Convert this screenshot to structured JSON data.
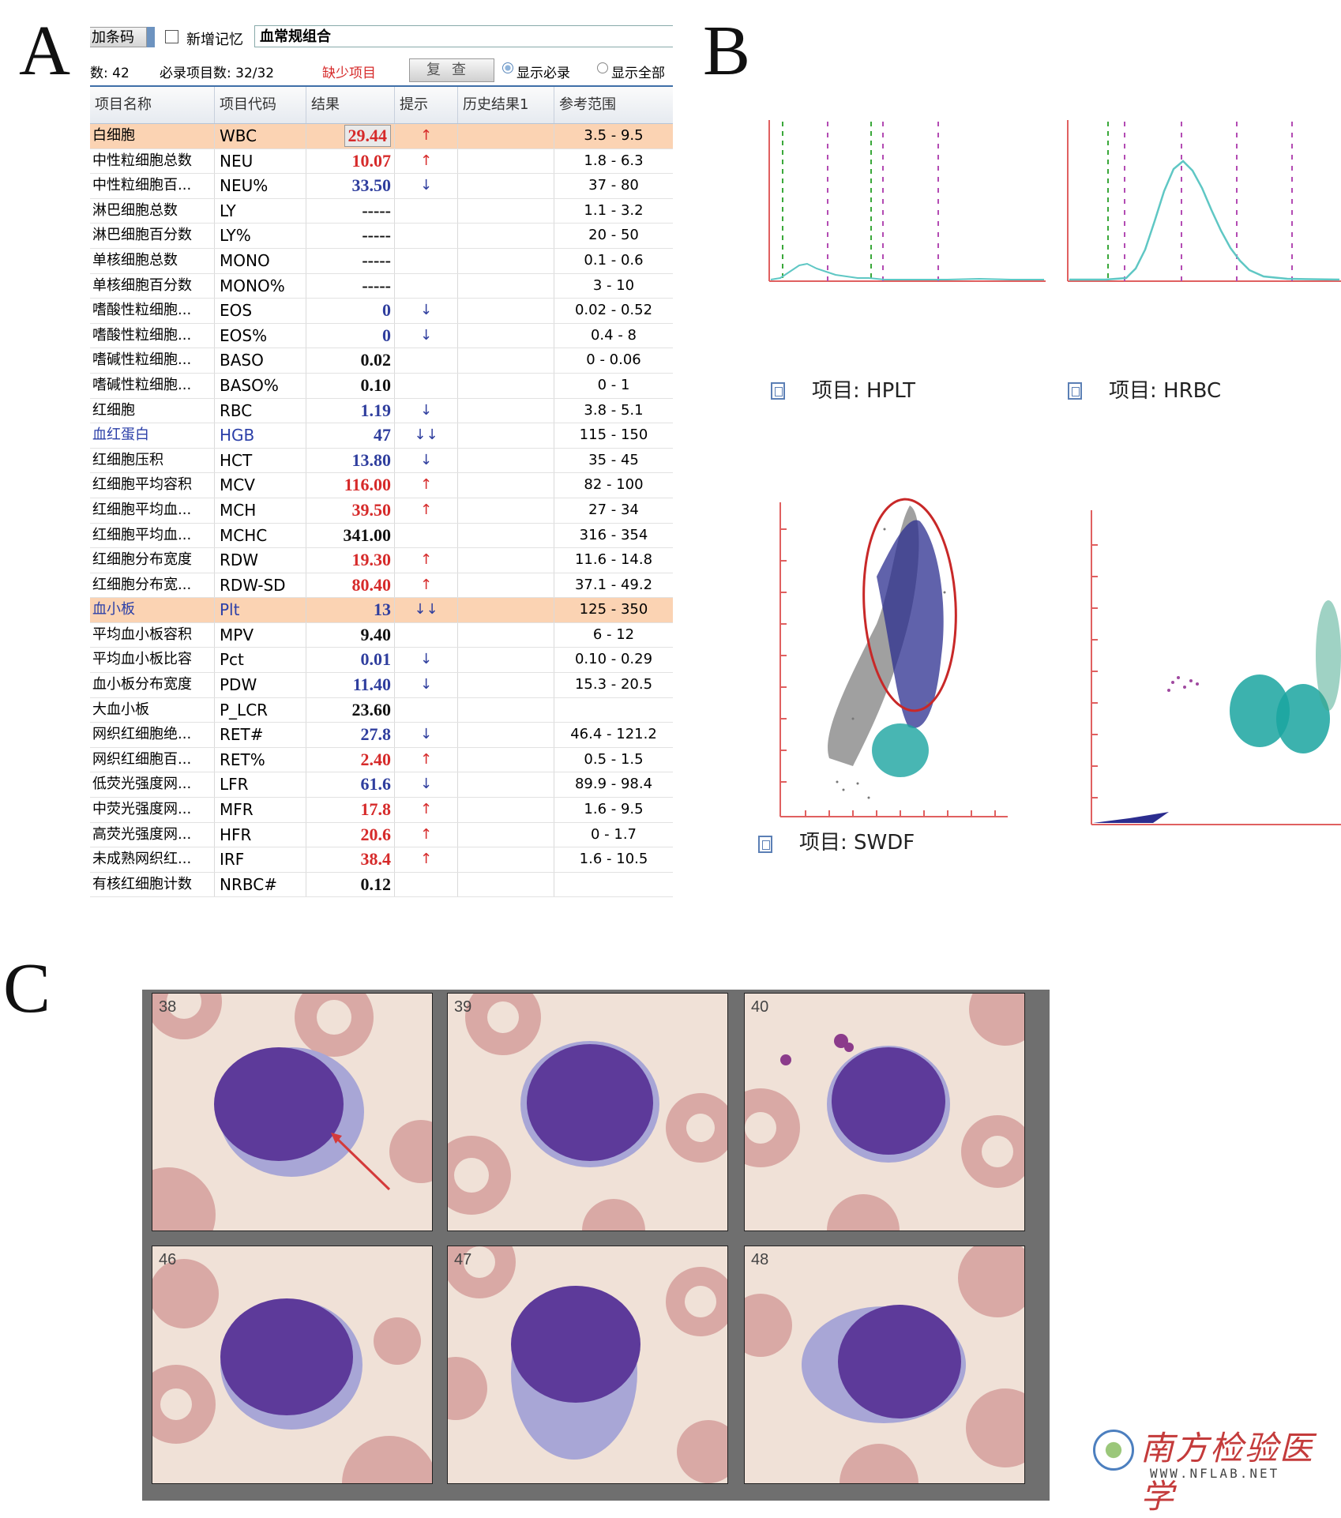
{
  "panels": {
    "a": "A",
    "b": "B",
    "c": "C"
  },
  "toolbar": {
    "barcode_btn": "加条码",
    "new_memory_label": "新增记忆",
    "combo_value": "血常规组合",
    "count_text": "数: 42",
    "required_text": "必录项目数: 32/32",
    "missing_text": "缺少项目",
    "review_btn": "复查",
    "radio_required": "显示必录",
    "radio_all": "显示全部"
  },
  "table": {
    "headers": [
      "项目名称",
      "项目代码",
      "结果",
      "提示",
      "历史结果1",
      "参考范围"
    ],
    "rows": [
      {
        "name": "白细胞",
        "code": "WBC",
        "result": "29.44",
        "flag": "↑",
        "ref": "3.5 - 9.5",
        "color": "#d62a2a",
        "hl": true,
        "boxed": true
      },
      {
        "name": "中性粒细胞总数",
        "code": "NEU",
        "result": "10.07",
        "flag": "↑",
        "ref": "1.8 - 6.3",
        "color": "#d62a2a"
      },
      {
        "name": "中性粒细胞百...",
        "code": "NEU%",
        "result": "33.50",
        "flag": "↓",
        "ref": "37 - 80",
        "color": "#2f3e9e"
      },
      {
        "name": "淋巴细胞总数",
        "code": "LY",
        "result": "-----",
        "flag": "",
        "ref": "1.1 - 3.2",
        "color": "#111111"
      },
      {
        "name": "淋巴细胞百分数",
        "code": "LY%",
        "result": "-----",
        "flag": "",
        "ref": "20 - 50",
        "color": "#111111"
      },
      {
        "name": "单核细胞总数",
        "code": "MONO",
        "result": "-----",
        "flag": "",
        "ref": "0.1 - 0.6",
        "color": "#111111"
      },
      {
        "name": "单核细胞百分数",
        "code": "MONO%",
        "result": "-----",
        "flag": "",
        "ref": "3 - 10",
        "color": "#111111"
      },
      {
        "name": "嗜酸性粒细胞...",
        "code": "EOS",
        "result": "0",
        "flag": "↓",
        "ref": "0.02 - 0.52",
        "color": "#2f3e9e"
      },
      {
        "name": "嗜酸性粒细胞...",
        "code": "EOS%",
        "result": "0",
        "flag": "↓",
        "ref": "0.4 - 8",
        "color": "#2f3e9e"
      },
      {
        "name": "嗜碱性粒细胞...",
        "code": "BASO",
        "result": "0.02",
        "flag": "",
        "ref": "0 - 0.06",
        "color": "#111111"
      },
      {
        "name": "嗜碱性粒细胞...",
        "code": "BASO%",
        "result": "0.10",
        "flag": "",
        "ref": "0 - 1",
        "color": "#111111"
      },
      {
        "name": "红细胞",
        "code": "RBC",
        "result": "1.19",
        "flag": "↓",
        "ref": "3.8 - 5.1",
        "color": "#2f3e9e"
      },
      {
        "name": "血红蛋白",
        "code": "HGB",
        "result": "47",
        "flag": "↓↓",
        "ref": "115 - 150",
        "color": "#2f3e9e",
        "namecolor": "#2b3fa8"
      },
      {
        "name": "红细胞压积",
        "code": "HCT",
        "result": "13.80",
        "flag": "↓",
        "ref": "35 - 45",
        "color": "#2f3e9e"
      },
      {
        "name": "红细胞平均容积",
        "code": "MCV",
        "result": "116.00",
        "flag": "↑",
        "ref": "82 - 100",
        "color": "#d62a2a"
      },
      {
        "name": "红细胞平均血...",
        "code": "MCH",
        "result": "39.50",
        "flag": "↑",
        "ref": "27 - 34",
        "color": "#d62a2a"
      },
      {
        "name": "红细胞平均血...",
        "code": "MCHC",
        "result": "341.00",
        "flag": "",
        "ref": "316 - 354",
        "color": "#111111"
      },
      {
        "name": "红细胞分布宽度",
        "code": "RDW",
        "result": "19.30",
        "flag": "↑",
        "ref": "11.6 - 14.8",
        "color": "#d62a2a"
      },
      {
        "name": "红细胞分布宽...",
        "code": "RDW-SD",
        "result": "80.40",
        "flag": "↑",
        "ref": "37.1 - 49.2",
        "color": "#d62a2a"
      },
      {
        "name": "血小板",
        "code": "Plt",
        "result": "13",
        "flag": "↓↓",
        "ref": "125 - 350",
        "color": "#2f3e9e",
        "hl": true,
        "namecolor": "#2b3fa8"
      },
      {
        "name": "平均血小板容积",
        "code": "MPV",
        "result": "9.40",
        "flag": "",
        "ref": "6 - 12",
        "color": "#111111"
      },
      {
        "name": "平均血小板比容",
        "code": "Pct",
        "result": "0.01",
        "flag": "↓",
        "ref": "0.10 - 0.29",
        "color": "#2f3e9e"
      },
      {
        "name": "血小板分布宽度",
        "code": "PDW",
        "result": "11.40",
        "flag": "↓",
        "ref": "15.3 - 20.5",
        "color": "#2f3e9e"
      },
      {
        "name": "大血小板",
        "code": "P_LCR",
        "result": "23.60",
        "flag": "",
        "ref": "",
        "color": "#111111"
      },
      {
        "name": "网织红细胞绝...",
        "code": "RET#",
        "result": "27.8",
        "flag": "↓",
        "ref": "46.4 - 121.2",
        "color": "#2f3e9e"
      },
      {
        "name": "网织红细胞百...",
        "code": "RET%",
        "result": "2.40",
        "flag": "↑",
        "ref": "0.5 - 1.5",
        "color": "#d62a2a"
      },
      {
        "name": "低荧光强度网...",
        "code": "LFR",
        "result": "61.6",
        "flag": "↓",
        "ref": "89.9 - 98.4",
        "color": "#2f3e9e"
      },
      {
        "name": "中荧光强度网...",
        "code": "MFR",
        "result": "17.8",
        "flag": "↑",
        "ref": "1.6 - 9.5",
        "color": "#d62a2a"
      },
      {
        "name": "高荧光强度网...",
        "code": "HFR",
        "result": "20.6",
        "flag": "↑",
        "ref": "0 - 1.7",
        "color": "#d62a2a"
      },
      {
        "name": "未成熟网织红...",
        "code": "IRF",
        "result": "38.4",
        "flag": "↑",
        "ref": "1.6 - 10.5",
        "color": "#d62a2a"
      },
      {
        "name": "有核红细胞计数",
        "code": "NRBC#",
        "result": "0.12",
        "flag": "",
        "ref": "",
        "color": "#111111"
      }
    ]
  },
  "analyzer": {
    "hplt_label": "项目: HPLT",
    "hrbc_label": "项目: HRBC",
    "swdf_label": "项目: SWDF"
  },
  "smear": {
    "tiles": [
      "38",
      "39",
      "40",
      "46",
      "47",
      "48"
    ]
  },
  "watermark": {
    "title": "南方检验医学",
    "url": "WWW.NFLAB.NET"
  },
  "colors": {
    "up": "#d62a2a",
    "down": "#2f3e9e",
    "highlight_row": "#fbd3b3",
    "histogram_line": "#5fc7c4",
    "axis": "#e06060"
  }
}
